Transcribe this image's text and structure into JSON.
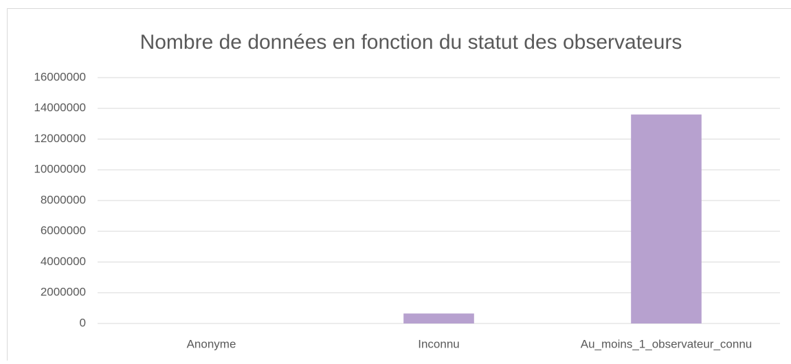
{
  "chart_data": {
    "type": "bar",
    "title": "Nombre de données en fonction du statut des observateurs",
    "categories": [
      "Anonyme",
      "Inconnu",
      "Au_moins_1_observateur_connu"
    ],
    "values": [
      0,
      650000,
      13600000
    ],
    "color": "#b7a1cf",
    "ylim": [
      0,
      16000000
    ],
    "yticks": [
      0,
      2000000,
      4000000,
      6000000,
      8000000,
      10000000,
      12000000,
      14000000,
      16000000
    ],
    "grid": true
  }
}
